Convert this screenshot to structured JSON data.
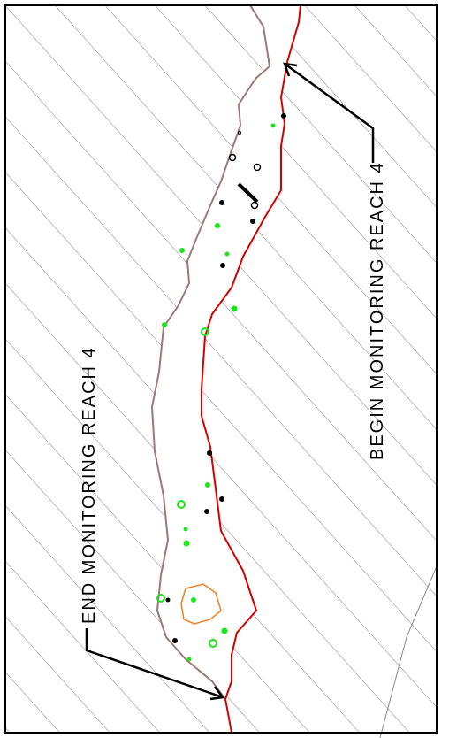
{
  "labels": {
    "begin": "BEGIN  MONITORING  REACH  4",
    "end": "END  MONITORING  REACH  4"
  },
  "colors": {
    "background": "#ffffff",
    "hatch": "#7f7f7f",
    "frame": "#000000",
    "left_bank": "#9b7a72",
    "right_bank": "#d40000",
    "marker_green": "#19e619",
    "marker_black": "#000000",
    "pond": "#f08020",
    "arrow": "#000000"
  }
}
